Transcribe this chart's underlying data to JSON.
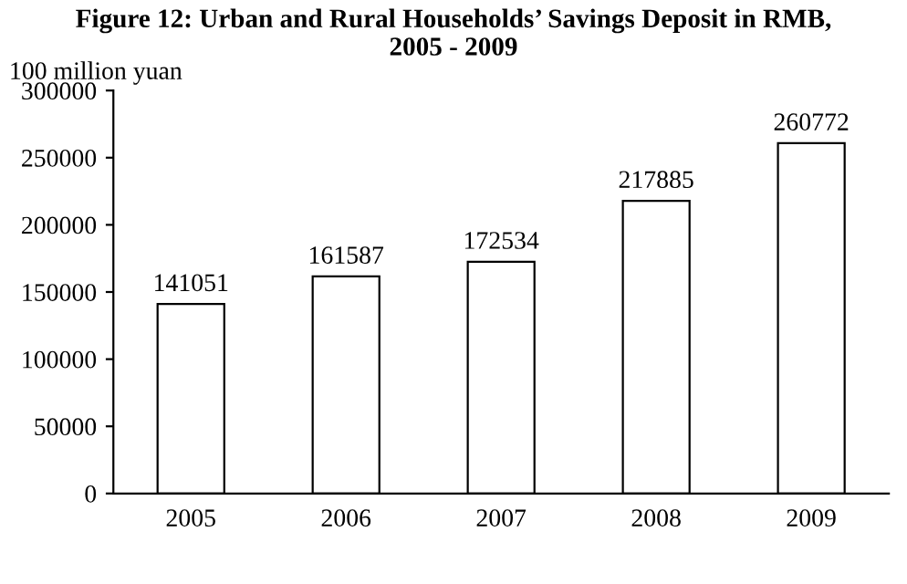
{
  "chart_data": {
    "type": "bar",
    "title": "Figure 12: Urban and Rural Households’ Savings Deposit in RMB,\n2005 - 2009",
    "ylabel": "100 million yuan",
    "categories": [
      "2005",
      "2006",
      "2007",
      "2008",
      "2009"
    ],
    "values": [
      141051,
      161587,
      172534,
      217885,
      260772
    ],
    "color": "#ffffff",
    "ylim": [
      0,
      300000
    ],
    "yticks": [
      0,
      50000,
      100000,
      150000,
      200000,
      250000,
      300000
    ],
    "data_labels": true,
    "grid": false,
    "legend": false
  }
}
